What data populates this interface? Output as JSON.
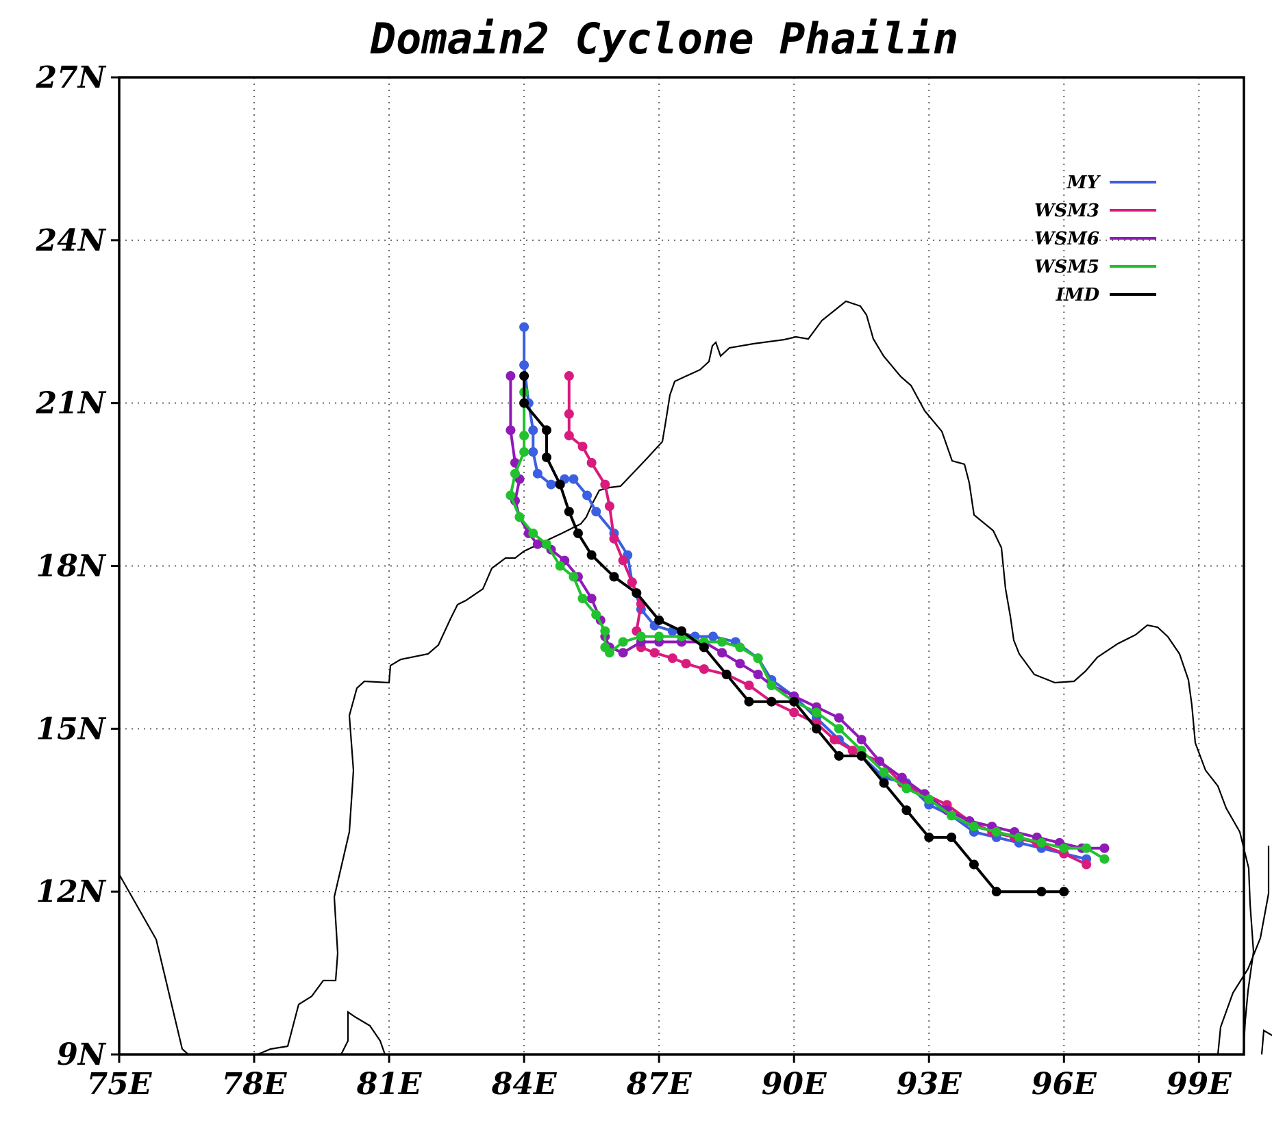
{
  "chart_data": {
    "type": "line",
    "title": "Domain2 Cyclone Phailin",
    "xlabel": "",
    "ylabel": "",
    "xlim": [
      75,
      100
    ],
    "ylim": [
      9,
      27
    ],
    "x_ticks": [
      75,
      78,
      81,
      84,
      87,
      90,
      93,
      96,
      99
    ],
    "x_tick_labels": [
      "75E",
      "78E",
      "81E",
      "84E",
      "87E",
      "90E",
      "93E",
      "96E",
      "99E"
    ],
    "y_ticks": [
      9,
      12,
      15,
      18,
      21,
      24,
      27
    ],
    "y_tick_labels": [
      "9N",
      "12N",
      "15N",
      "18N",
      "21N",
      "24N",
      "27N"
    ],
    "grid": true,
    "legend_position": "top-right",
    "series": [
      {
        "name": "MY",
        "color": "#3b5fe0",
        "points": [
          [
            96.5,
            12.6
          ],
          [
            96.0,
            12.7
          ],
          [
            95.5,
            12.8
          ],
          [
            95.0,
            12.9
          ],
          [
            94.5,
            13.0
          ],
          [
            94.0,
            13.1
          ],
          [
            93.5,
            13.4
          ],
          [
            93.0,
            13.6
          ],
          [
            92.5,
            14.0
          ],
          [
            92.0,
            14.1
          ],
          [
            91.5,
            14.5
          ],
          [
            91.0,
            14.8
          ],
          [
            90.5,
            15.2
          ],
          [
            90.0,
            15.6
          ],
          [
            89.5,
            15.9
          ],
          [
            89.2,
            16.3
          ],
          [
            88.7,
            16.6
          ],
          [
            88.2,
            16.7
          ],
          [
            87.8,
            16.7
          ],
          [
            87.3,
            16.8
          ],
          [
            86.9,
            16.9
          ],
          [
            86.6,
            17.2
          ],
          [
            86.4,
            17.7
          ],
          [
            86.3,
            18.2
          ],
          [
            86.0,
            18.6
          ],
          [
            85.6,
            19.0
          ],
          [
            85.4,
            19.3
          ],
          [
            85.1,
            19.6
          ],
          [
            84.9,
            19.6
          ],
          [
            84.6,
            19.5
          ],
          [
            84.3,
            19.7
          ],
          [
            84.2,
            20.1
          ],
          [
            84.2,
            20.5
          ],
          [
            84.1,
            21.0
          ],
          [
            84.0,
            21.7
          ],
          [
            84.0,
            22.4
          ]
        ]
      },
      {
        "name": "WSM3",
        "color": "#d81b7d",
        "points": [
          [
            96.5,
            12.5
          ],
          [
            96.0,
            12.7
          ],
          [
            95.4,
            12.9
          ],
          [
            94.9,
            13.0
          ],
          [
            94.4,
            13.1
          ],
          [
            93.9,
            13.3
          ],
          [
            93.4,
            13.6
          ],
          [
            92.9,
            13.8
          ],
          [
            92.4,
            14.0
          ],
          [
            91.9,
            14.4
          ],
          [
            91.3,
            14.6
          ],
          [
            90.9,
            14.8
          ],
          [
            90.5,
            15.1
          ],
          [
            90.0,
            15.3
          ],
          [
            89.5,
            15.5
          ],
          [
            89.0,
            15.8
          ],
          [
            88.5,
            16.0
          ],
          [
            88.0,
            16.1
          ],
          [
            87.6,
            16.2
          ],
          [
            87.3,
            16.3
          ],
          [
            86.9,
            16.4
          ],
          [
            86.6,
            16.5
          ],
          [
            86.5,
            16.8
          ],
          [
            86.6,
            17.3
          ],
          [
            86.4,
            17.7
          ],
          [
            86.2,
            18.1
          ],
          [
            86.0,
            18.5
          ],
          [
            85.9,
            19.1
          ],
          [
            85.8,
            19.5
          ],
          [
            85.5,
            19.9
          ],
          [
            85.3,
            20.2
          ],
          [
            85.0,
            20.4
          ],
          [
            85.0,
            20.8
          ],
          [
            85.0,
            21.5
          ]
        ]
      },
      {
        "name": "WSM6",
        "color": "#8e1ab8",
        "points": [
          [
            96.9,
            12.8
          ],
          [
            96.4,
            12.8
          ],
          [
            95.9,
            12.9
          ],
          [
            95.4,
            13.0
          ],
          [
            94.9,
            13.1
          ],
          [
            94.4,
            13.2
          ],
          [
            93.9,
            13.3
          ],
          [
            93.4,
            13.5
          ],
          [
            92.9,
            13.8
          ],
          [
            92.4,
            14.1
          ],
          [
            91.9,
            14.4
          ],
          [
            91.5,
            14.8
          ],
          [
            91.0,
            15.2
          ],
          [
            90.5,
            15.4
          ],
          [
            90.0,
            15.6
          ],
          [
            89.5,
            15.8
          ],
          [
            89.2,
            16.0
          ],
          [
            88.8,
            16.2
          ],
          [
            88.4,
            16.4
          ],
          [
            88.0,
            16.6
          ],
          [
            87.5,
            16.6
          ],
          [
            87.0,
            16.6
          ],
          [
            86.6,
            16.6
          ],
          [
            86.2,
            16.4
          ],
          [
            85.9,
            16.5
          ],
          [
            85.8,
            16.7
          ],
          [
            85.7,
            17.0
          ],
          [
            85.5,
            17.4
          ],
          [
            85.2,
            17.8
          ],
          [
            84.9,
            18.1
          ],
          [
            84.6,
            18.3
          ],
          [
            84.3,
            18.4
          ],
          [
            84.1,
            18.6
          ],
          [
            83.9,
            18.9
          ],
          [
            83.8,
            19.2
          ],
          [
            83.9,
            19.6
          ],
          [
            83.8,
            19.9
          ],
          [
            83.7,
            20.5
          ],
          [
            83.7,
            21.5
          ]
        ]
      },
      {
        "name": "WSM5",
        "color": "#22c12e",
        "points": [
          [
            96.9,
            12.6
          ],
          [
            96.5,
            12.8
          ],
          [
            96.0,
            12.8
          ],
          [
            95.5,
            12.9
          ],
          [
            95.0,
            13.0
          ],
          [
            94.5,
            13.1
          ],
          [
            94.0,
            13.2
          ],
          [
            93.5,
            13.4
          ],
          [
            93.0,
            13.7
          ],
          [
            92.5,
            13.9
          ],
          [
            92.0,
            14.2
          ],
          [
            91.5,
            14.6
          ],
          [
            91.0,
            15.0
          ],
          [
            90.5,
            15.3
          ],
          [
            90.0,
            15.5
          ],
          [
            89.5,
            15.8
          ],
          [
            89.2,
            16.3
          ],
          [
            88.8,
            16.5
          ],
          [
            88.4,
            16.6
          ],
          [
            88.0,
            16.6
          ],
          [
            87.5,
            16.7
          ],
          [
            87.0,
            16.7
          ],
          [
            86.6,
            16.7
          ],
          [
            86.2,
            16.6
          ],
          [
            85.9,
            16.4
          ],
          [
            85.8,
            16.5
          ],
          [
            85.8,
            16.8
          ],
          [
            85.6,
            17.1
          ],
          [
            85.3,
            17.4
          ],
          [
            85.1,
            17.8
          ],
          [
            84.8,
            18.0
          ],
          [
            84.5,
            18.4
          ],
          [
            84.2,
            18.6
          ],
          [
            83.9,
            18.9
          ],
          [
            83.7,
            19.3
          ],
          [
            83.8,
            19.7
          ],
          [
            84.0,
            20.1
          ],
          [
            84.0,
            20.4
          ],
          [
            84.0,
            21.2
          ]
        ]
      },
      {
        "name": "IMD",
        "color": "#000000",
        "points": [
          [
            96.0,
            12.0
          ],
          [
            95.5,
            12.0
          ],
          [
            94.5,
            12.0
          ],
          [
            94.0,
            12.5
          ],
          [
            93.5,
            13.0
          ],
          [
            93.0,
            13.0
          ],
          [
            92.5,
            13.5
          ],
          [
            92.0,
            14.0
          ],
          [
            91.5,
            14.5
          ],
          [
            91.0,
            14.5
          ],
          [
            90.5,
            15.0
          ],
          [
            90.0,
            15.5
          ],
          [
            89.5,
            15.5
          ],
          [
            89.0,
            15.5
          ],
          [
            88.5,
            16.0
          ],
          [
            88.0,
            16.5
          ],
          [
            87.5,
            16.8
          ],
          [
            87.0,
            17.0
          ],
          [
            86.5,
            17.5
          ],
          [
            86.0,
            17.8
          ],
          [
            85.5,
            18.2
          ],
          [
            85.2,
            18.6
          ],
          [
            85.0,
            19.0
          ],
          [
            84.8,
            19.5
          ],
          [
            84.5,
            20.0
          ],
          [
            84.5,
            20.5
          ],
          [
            84.0,
            21.0
          ],
          [
            84.0,
            21.5
          ]
        ]
      }
    ]
  }
}
